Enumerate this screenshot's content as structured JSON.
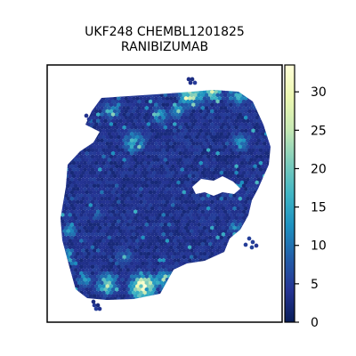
{
  "chart_data": {
    "type": "heatmap",
    "title_lines": [
      "UKF248 CHEMBL1201825",
      "RANIBIZUMAB"
    ],
    "xlabel": "",
    "ylabel": "",
    "grid": false,
    "colormap": "YlGnBu",
    "colorbar": {
      "range": [
        0,
        33.5
      ],
      "ticks": [
        0,
        5,
        10,
        15,
        20,
        25,
        30
      ],
      "tick_labels": [
        "0",
        "5",
        "10",
        "15",
        "20",
        "25",
        "30"
      ],
      "placement": "right"
    },
    "description_values": {
      "background_level": 2,
      "max_level": 33
    }
  },
  "colors": {
    "cmap_stops": [
      "#081d58",
      "#253494",
      "#225ea8",
      "#1d91c0",
      "#41b6c4",
      "#7fcdbb",
      "#c7e9b4",
      "#edf8b1",
      "#ffffd9"
    ]
  }
}
